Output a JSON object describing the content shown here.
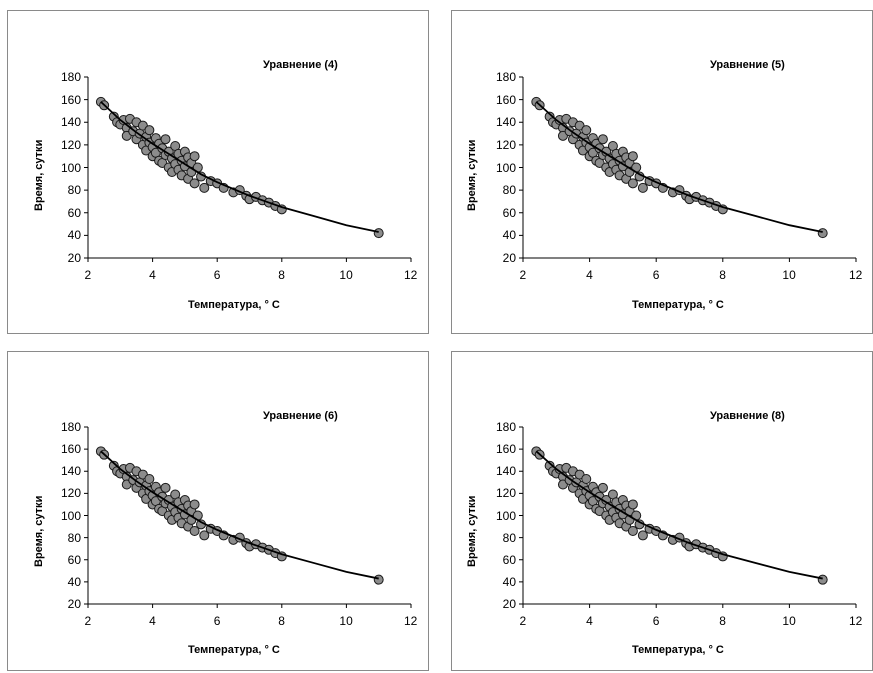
{
  "chart_data": [
    {
      "type": "scatter",
      "title": "Уравнение (4)",
      "xlabel": "Температура, ° C",
      "ylabel": "Время, сутки",
      "xlim": [
        2,
        12
      ],
      "ylim": [
        20,
        180
      ],
      "xticks": [
        "2",
        "4",
        "6",
        "8",
        "10",
        "12"
      ],
      "yticks": [
        "20",
        "40",
        "60",
        "80",
        "100",
        "120",
        "140",
        "160",
        "180"
      ],
      "grid": false,
      "legend": "none"
    },
    {
      "type": "scatter",
      "title": "Уравнение (5)",
      "xlabel": "Температура, ° C",
      "ylabel": "Время, сутки",
      "xlim": [
        2,
        12
      ],
      "ylim": [
        20,
        180
      ],
      "xticks": [
        "2",
        "4",
        "6",
        "8",
        "10",
        "12"
      ],
      "yticks": [
        "20",
        "40",
        "60",
        "80",
        "100",
        "120",
        "140",
        "160",
        "180"
      ],
      "grid": false,
      "legend": "none"
    },
    {
      "type": "scatter",
      "title": "Уравнение (6)",
      "xlabel": "Температура, ° C",
      "ylabel": "Время, сутки",
      "xlim": [
        2,
        12
      ],
      "ylim": [
        20,
        180
      ],
      "xticks": [
        "2",
        "4",
        "6",
        "8",
        "10",
        "12"
      ],
      "yticks": [
        "20",
        "40",
        "60",
        "80",
        "100",
        "120",
        "140",
        "160",
        "180"
      ],
      "grid": false,
      "legend": "none"
    },
    {
      "type": "scatter",
      "title": "Уравнение (8)",
      "xlabel": "Температура, ° C",
      "ylabel": "Время, сутки",
      "xlim": [
        2,
        12
      ],
      "ylim": [
        20,
        180
      ],
      "xticks": [
        "2",
        "4",
        "6",
        "8",
        "10",
        "12"
      ],
      "yticks": [
        "20",
        "40",
        "60",
        "80",
        "100",
        "120",
        "140",
        "160",
        "180"
      ],
      "grid": false,
      "legend": "none"
    }
  ],
  "shared_series": {
    "points": [
      [
        2.4,
        158
      ],
      [
        2.5,
        155
      ],
      [
        2.8,
        145
      ],
      [
        2.9,
        140
      ],
      [
        3.0,
        138
      ],
      [
        3.1,
        142
      ],
      [
        3.2,
        135
      ],
      [
        3.2,
        128
      ],
      [
        3.3,
        143
      ],
      [
        3.4,
        132
      ],
      [
        3.5,
        140
      ],
      [
        3.5,
        125
      ],
      [
        3.6,
        130
      ],
      [
        3.7,
        137
      ],
      [
        3.7,
        120
      ],
      [
        3.8,
        127
      ],
      [
        3.8,
        115
      ],
      [
        3.9,
        133
      ],
      [
        3.9,
        122
      ],
      [
        4.0,
        118
      ],
      [
        4.0,
        110
      ],
      [
        4.1,
        126
      ],
      [
        4.1,
        113
      ],
      [
        4.2,
        121
      ],
      [
        4.2,
        106
      ],
      [
        4.3,
        117
      ],
      [
        4.3,
        104
      ],
      [
        4.4,
        125
      ],
      [
        4.4,
        111
      ],
      [
        4.5,
        100
      ],
      [
        4.5,
        114
      ],
      [
        4.6,
        108
      ],
      [
        4.6,
        96
      ],
      [
        4.7,
        119
      ],
      [
        4.7,
        103
      ],
      [
        4.8,
        112
      ],
      [
        4.8,
        98
      ],
      [
        4.9,
        106
      ],
      [
        4.9,
        93
      ],
      [
        5.0,
        114
      ],
      [
        5.0,
        101
      ],
      [
        5.1,
        109
      ],
      [
        5.1,
        90
      ],
      [
        5.2,
        104
      ],
      [
        5.2,
        96
      ],
      [
        5.3,
        110
      ],
      [
        5.3,
        86
      ],
      [
        5.4,
        100
      ],
      [
        5.5,
        92
      ],
      [
        5.6,
        82
      ],
      [
        5.8,
        88
      ],
      [
        6.0,
        86
      ],
      [
        6.2,
        82
      ],
      [
        6.5,
        78
      ],
      [
        6.7,
        80
      ],
      [
        6.9,
        75
      ],
      [
        7.0,
        72
      ],
      [
        7.2,
        74
      ],
      [
        7.4,
        71
      ],
      [
        7.6,
        69
      ],
      [
        7.8,
        66
      ],
      [
        8.0,
        63
      ],
      [
        11.0,
        42
      ]
    ],
    "fit": [
      [
        2.4,
        158
      ],
      [
        3.0,
        142
      ],
      [
        3.5,
        131
      ],
      [
        4.0,
        121
      ],
      [
        4.5,
        112
      ],
      [
        5.0,
        103
      ],
      [
        5.5,
        94
      ],
      [
        6.0,
        87
      ],
      [
        6.5,
        81
      ],
      [
        7.0,
        75
      ],
      [
        7.5,
        70
      ],
      [
        8.0,
        65
      ],
      [
        9.0,
        57
      ],
      [
        10.0,
        49
      ],
      [
        11.0,
        43
      ]
    ]
  }
}
